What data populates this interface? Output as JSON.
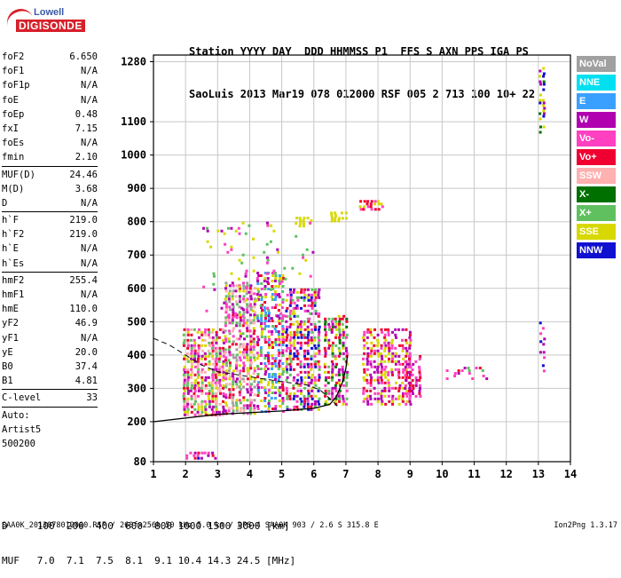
{
  "logo": {
    "line1": "Lowell",
    "line2": "DIGISONDE"
  },
  "header": {
    "line1": "Station YYYY DAY  DDD HHMMSS P1  FFS S AXN PPS IGA PS",
    "line2": "SaoLuis 2013 Mar19 078 012000 RSF 005 2 713 100 10+ 22"
  },
  "params": [
    {
      "k": "foF2",
      "v": "6.650"
    },
    {
      "k": "foF1",
      "v": "N/A"
    },
    {
      "k": "foF1p",
      "v": "N/A"
    },
    {
      "k": "foE",
      "v": "N/A"
    },
    {
      "k": "foEp",
      "v": "0.48"
    },
    {
      "k": "fxI",
      "v": "7.15"
    },
    {
      "k": "foEs",
      "v": "N/A"
    },
    {
      "k": "fmin",
      "v": "2.10"
    },
    {
      "sep": true
    },
    {
      "k": "MUF(D)",
      "v": "24.46"
    },
    {
      "k": "M(D)",
      "v": "3.68"
    },
    {
      "k": "D",
      "v": "N/A"
    },
    {
      "sep": true
    },
    {
      "k": "h`F",
      "v": "219.0"
    },
    {
      "k": "h`F2",
      "v": "219.0"
    },
    {
      "k": "h`E",
      "v": "N/A"
    },
    {
      "k": "h`Es",
      "v": "N/A"
    },
    {
      "sep": true
    },
    {
      "k": "hmF2",
      "v": "255.4"
    },
    {
      "k": "hmF1",
      "v": "N/A"
    },
    {
      "k": "hmE",
      "v": "110.0"
    },
    {
      "k": "yF2",
      "v": "46.9"
    },
    {
      "k": "yF1",
      "v": "N/A"
    },
    {
      "k": "yE",
      "v": "20.0"
    },
    {
      "k": "B0",
      "v": "37.4"
    },
    {
      "k": "B1",
      "v": "4.81"
    },
    {
      "sep": true
    },
    {
      "k": "C-level",
      "v": "33"
    },
    {
      "sep": true
    },
    {
      "k": "Auto:",
      "v": ""
    },
    {
      "k": "Artist5",
      "v": ""
    },
    {
      "k": "500200",
      "v": ""
    }
  ],
  "legend": [
    {
      "label": "NoVal",
      "color": "#a0a0a0"
    },
    {
      "label": "NNE",
      "color": "#00e0f0"
    },
    {
      "label": "E",
      "color": "#3aa0ff"
    },
    {
      "label": "W",
      "color": "#b000b0"
    },
    {
      "label": "Vo-",
      "color": "#ff40c0"
    },
    {
      "label": "Vo+",
      "color": "#f00030"
    },
    {
      "label": "SSW",
      "color": "#ffb0b0"
    },
    {
      "label": "X-",
      "color": "#007000"
    },
    {
      "label": "X+",
      "color": "#60c060"
    },
    {
      "label": "SSE",
      "color": "#d8d800"
    },
    {
      "label": "NNW",
      "color": "#1010d0"
    }
  ],
  "footer": {
    "line1": "D     100  200  400  600  800 1000 1500 3000 [km]",
    "line2": "MUF   7.0  7.1  7.5  8.1  9.1 10.4 14.3 24.5 [MHz]",
    "line3": "SAA0K_2013078012000.RSF / 260fx256h 50 kHz 5.0 km / DPS-4 SAA0K 903 / 2.6 S 315.8 E",
    "version": "Ion2Png 1.3.17"
  },
  "chart_data": {
    "type": "scatter",
    "xlim": [
      1,
      14
    ],
    "ylim": [
      80,
      1300
    ],
    "xticks": [
      "1",
      "2",
      "3",
      "4",
      "5",
      "6",
      "7",
      "8",
      "9",
      "10",
      "11",
      "12",
      "13",
      "14"
    ],
    "yticks": [
      "80",
      "200",
      "300",
      "400",
      "500",
      "600",
      "700",
      "800",
      "900",
      "1000",
      "1100",
      "1280"
    ],
    "grid": true,
    "legend_placement": "right",
    "clusters": [
      {
        "x": [
          1.9,
          3.2
        ],
        "y": [
          220,
          480
        ],
        "density": 0.75,
        "colors": [
          "#ff40c0",
          "#f00030",
          "#d8d800",
          "#b000b0",
          "#60c060",
          "#ffb0b0"
        ]
      },
      {
        "x": [
          3.2,
          4.2
        ],
        "y": [
          220,
          620
        ],
        "density": 0.7,
        "colors": [
          "#ff40c0",
          "#f00030",
          "#d8d800",
          "#b000b0",
          "#60c060",
          "#ffb0b0",
          "#a0a0a0"
        ]
      },
      {
        "x": [
          4.2,
          5.1
        ],
        "y": [
          230,
          650
        ],
        "density": 0.65,
        "colors": [
          "#ff40c0",
          "#f00030",
          "#d8d800",
          "#b000b0",
          "#60c060",
          "#3aa0ff"
        ]
      },
      {
        "x": [
          5.1,
          6.2
        ],
        "y": [
          230,
          600
        ],
        "density": 0.65,
        "colors": [
          "#ff40c0",
          "#f00030",
          "#d8d800",
          "#b000b0",
          "#60c060",
          "#1010d0"
        ]
      },
      {
        "x": [
          6.3,
          7.1
        ],
        "y": [
          250,
          520
        ],
        "density": 0.65,
        "colors": [
          "#ff40c0",
          "#f00030",
          "#d8d800",
          "#b000b0",
          "#60c060",
          "#007000"
        ]
      },
      {
        "x": [
          7.5,
          9.0
        ],
        "y": [
          250,
          480
        ],
        "density": 0.6,
        "colors": [
          "#ff40c0",
          "#f00030",
          "#b000b0",
          "#d8d800"
        ]
      },
      {
        "x": [
          8.8,
          9.4
        ],
        "y": [
          270,
          400
        ],
        "density": 0.55,
        "colors": [
          "#ff40c0",
          "#f00030",
          "#b000b0"
        ]
      },
      {
        "x": [
          10.0,
          11.4
        ],
        "y": [
          325,
          365
        ],
        "density": 0.35,
        "colors": [
          "#60c060",
          "#ff40c0",
          "#f00030",
          "#b000b0"
        ]
      },
      {
        "x": [
          5.4,
          5.9
        ],
        "y": [
          785,
          815
        ],
        "density": 0.8,
        "colors": [
          "#d8d800"
        ]
      },
      {
        "x": [
          6.5,
          7.1
        ],
        "y": [
          800,
          830
        ],
        "density": 0.8,
        "colors": [
          "#d8d800"
        ]
      },
      {
        "x": [
          7.4,
          8.2
        ],
        "y": [
          835,
          865
        ],
        "density": 0.7,
        "colors": [
          "#f00030",
          "#ff40c0",
          "#d8d800"
        ]
      },
      {
        "x": [
          2.0,
          3.0
        ],
        "y": [
          85,
          110
        ],
        "density": 0.6,
        "colors": [
          "#ff40c0",
          "#1010d0",
          "#f00030",
          "#b000b0"
        ]
      },
      {
        "x": [
          13.0,
          13.2
        ],
        "y": [
          1060,
          1280
        ],
        "density": 0.3,
        "colors": [
          "#007000",
          "#b000b0",
          "#1010d0",
          "#d8d800"
        ]
      },
      {
        "x": [
          13.0,
          13.2
        ],
        "y": [
          330,
          500
        ],
        "density": 0.3,
        "colors": [
          "#1010d0",
          "#b000b0",
          "#ff40c0"
        ]
      },
      {
        "x": [
          2.5,
          6.0
        ],
        "y": [
          500,
          800
        ],
        "density": 0.08,
        "colors": [
          "#d8d800",
          "#ff40c0",
          "#b000b0",
          "#60c060"
        ]
      }
    ],
    "curves": {
      "profile": [
        [
          1,
          200
        ],
        [
          3,
          222
        ],
        [
          5,
          232
        ],
        [
          6,
          240
        ],
        [
          6.5,
          252
        ],
        [
          6.7,
          275
        ],
        [
          6.9,
          320
        ],
        [
          7.0,
          360
        ],
        [
          7.05,
          400
        ]
      ],
      "dashed": [
        [
          1,
          450
        ],
        [
          1.5,
          430
        ],
        [
          2,
          400
        ],
        [
          2.5,
          370
        ],
        [
          3,
          350
        ],
        [
          4,
          335
        ],
        [
          5,
          320
        ],
        [
          5.8,
          310
        ],
        [
          6.2,
          295
        ],
        [
          6.6,
          260
        ],
        [
          6.8,
          240
        ]
      ]
    }
  }
}
